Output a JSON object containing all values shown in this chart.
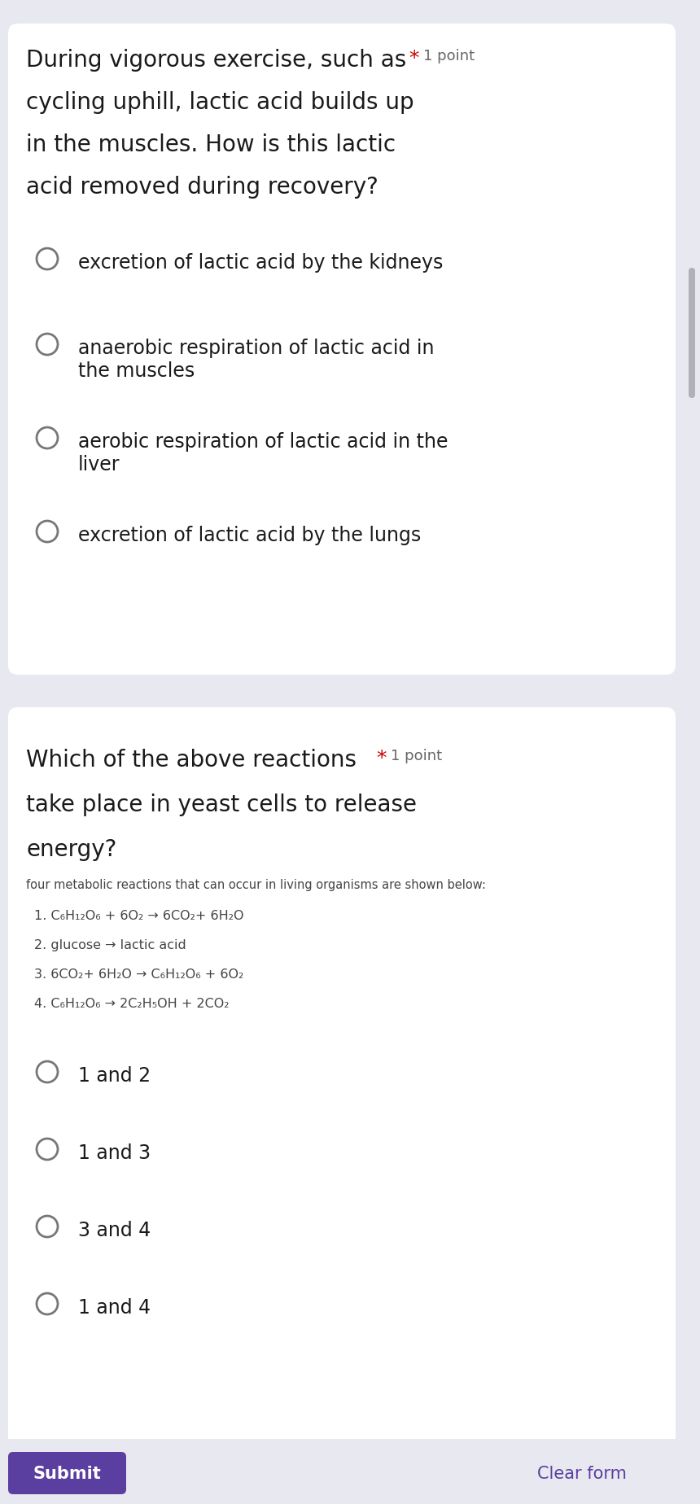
{
  "bg_color": "#e8e8f0",
  "card_color": "#ffffff",
  "q1_title_line1": "During vigorous exercise, such as",
  "q1_title_line2": "cycling uphill, lactic acid builds up",
  "q1_title_line3": "in the muscles. How is this lactic",
  "q1_title_line4": "acid removed during recovery?",
  "q1_options": [
    "excretion of lactic acid by the kidneys",
    "anaerobic respiration of lactic acid in\nthe muscles",
    "aerobic respiration of lactic acid in the\nliver",
    "excretion of lactic acid by the lungs"
  ],
  "q2_title_line1": "Which of the above reactions",
  "q2_title_line2": "take place in yeast cells to release",
  "q2_title_line3": "energy?",
  "q2_preamble": "four metabolic reactions that can occur in living organisms are shown below:",
  "q2_reactions": [
    "1. C₆H₁₂O₆ + 6O₂ → 6CO₂+ 6H₂O",
    "2. glucose → lactic acid",
    "3. 6CO₂+ 6H₂O → C₆H₁₂O₆ + 6O₂",
    "4. C₆H₁₂O₆ → 2C₂H₅OH + 2CO₂"
  ],
  "q2_options": [
    "1 and 2",
    "1 and 3",
    "3 and 4",
    "1 and 4"
  ],
  "submit_bg": "#5b3fa0",
  "submit_text": "Submit",
  "clear_text": "Clear form",
  "clear_color": "#5b3fa0",
  "star_color": "#cc0000",
  "point_color": "#666666",
  "text_color": "#1a1a1a",
  "option_color": "#1a1a1a",
  "reaction_color": "#444444",
  "radio_edge_color": "#777777",
  "scrollbar_color": "#b0b0b8"
}
